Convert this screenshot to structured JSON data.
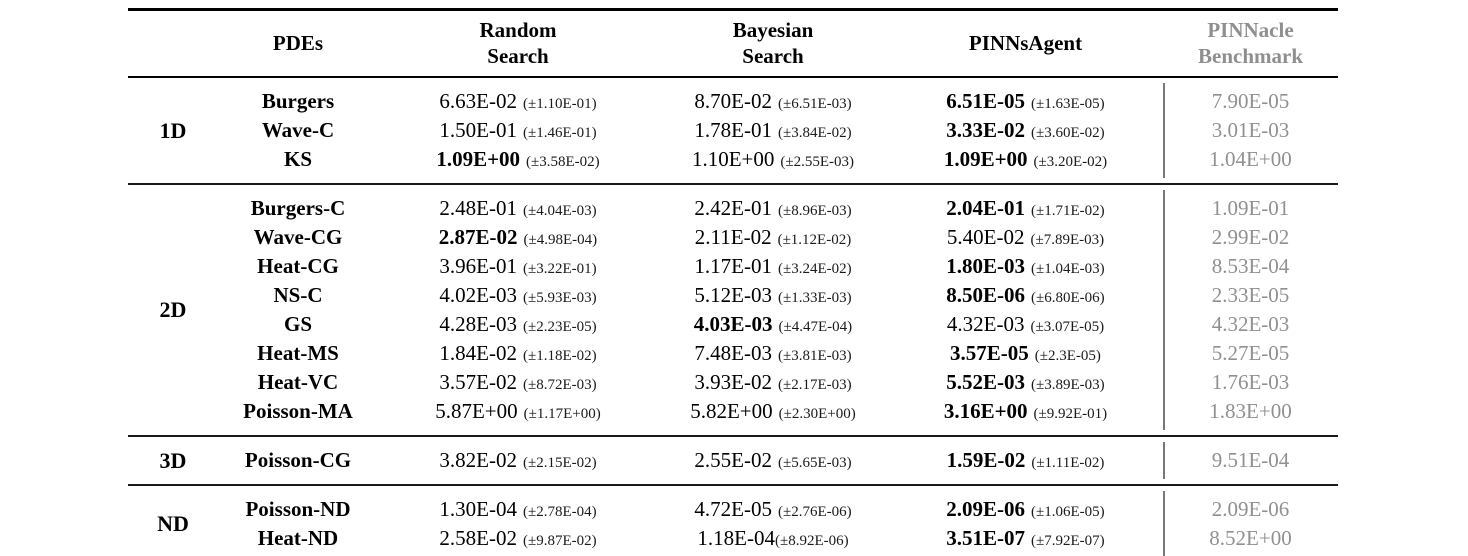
{
  "table": {
    "columns": {
      "pdes": {
        "label": "PDEs"
      },
      "random_search": {
        "line1": "Random",
        "line2": "Search"
      },
      "bayesian_search": {
        "line1": "Bayesian",
        "line2": "Search"
      },
      "pinnsagent": {
        "label": "PINNsAgent"
      },
      "pinnacle_benchmark": {
        "line1": "PINNacle",
        "line2": "Benchmark"
      }
    },
    "colors": {
      "text": "#000000",
      "benchmark_gray": "#909090",
      "rule_black": "#000000",
      "vline_gray": "#787878"
    },
    "groups": [
      {
        "dim": "1D",
        "rows": [
          {
            "pde": "Burgers",
            "random": {
              "value": "6.63E-02",
              "std": "(±1.10E-01)",
              "bold": false
            },
            "bayesian": {
              "value": "8.70E-02",
              "std": "(±6.51E-03)",
              "bold": false
            },
            "pinnsagent": {
              "value": "6.51E-05",
              "std": "(±1.63E-05)",
              "bold": true
            },
            "benchmark": "7.90E-05"
          },
          {
            "pde": "Wave-C",
            "random": {
              "value": "1.50E-01",
              "std": "(±1.46E-01)",
              "bold": false
            },
            "bayesian": {
              "value": "1.78E-01",
              "std": "(±3.84E-02)",
              "bold": false
            },
            "pinnsagent": {
              "value": "3.33E-02",
              "std": "(±3.60E-02)",
              "bold": true
            },
            "benchmark": "3.01E-03"
          },
          {
            "pde": "KS",
            "random": {
              "value": "1.09E+00",
              "std": "(±3.58E-02)",
              "bold": true
            },
            "bayesian": {
              "value": "1.10E+00",
              "std": "(±2.55E-03)",
              "bold": false
            },
            "pinnsagent": {
              "value": "1.09E+00",
              "std": "(±3.20E-02)",
              "bold": true
            },
            "benchmark": "1.04E+00"
          }
        ]
      },
      {
        "dim": "2D",
        "rows": [
          {
            "pde": "Burgers-C",
            "random": {
              "value": "2.48E-01",
              "std": "(±4.04E-03)",
              "bold": false
            },
            "bayesian": {
              "value": "2.42E-01",
              "std": "(±8.96E-03)",
              "bold": false
            },
            "pinnsagent": {
              "value": "2.04E-01",
              "std": "(±1.71E-02)",
              "bold": true
            },
            "benchmark": "1.09E-01"
          },
          {
            "pde": "Wave-CG",
            "random": {
              "value": "2.87E-02",
              "std": "(±4.98E-04)",
              "bold": true
            },
            "bayesian": {
              "value": "2.11E-02",
              "std": "(±1.12E-02)",
              "bold": false
            },
            "pinnsagent": {
              "value": "5.40E-02",
              "std": "(±7.89E-03)",
              "bold": false
            },
            "benchmark": "2.99E-02"
          },
          {
            "pde": "Heat-CG",
            "random": {
              "value": "3.96E-01",
              "std": "(±3.22E-01)",
              "bold": false
            },
            "bayesian": {
              "value": "1.17E-01",
              "std": "(±3.24E-02)",
              "bold": false
            },
            "pinnsagent": {
              "value": "1.80E-03",
              "std": "(±1.04E-03)",
              "bold": true
            },
            "benchmark": "8.53E-04"
          },
          {
            "pde": "NS-C",
            "random": {
              "value": "4.02E-03",
              "std": "(±5.93E-03)",
              "bold": false
            },
            "bayesian": {
              "value": "5.12E-03",
              "std": "(±1.33E-03)",
              "bold": false
            },
            "pinnsagent": {
              "value": "8.50E-06",
              "std": "(±6.80E-06)",
              "bold": true
            },
            "benchmark": "2.33E-05"
          },
          {
            "pde": "GS",
            "random": {
              "value": "4.28E-03",
              "std": "(±2.23E-05)",
              "bold": false
            },
            "bayesian": {
              "value": "4.03E-03",
              "std": "(±4.47E-04)",
              "bold": true
            },
            "pinnsagent": {
              "value": "4.32E-03",
              "std": "(±3.07E-05)",
              "bold": false
            },
            "benchmark": "4.32E-03"
          },
          {
            "pde": "Heat-MS",
            "random": {
              "value": "1.84E-02",
              "std": "(±1.18E-02)",
              "bold": false
            },
            "bayesian": {
              "value": "7.48E-03",
              "std": "(±3.81E-03)",
              "bold": false
            },
            "pinnsagent": {
              "value": "3.57E-05",
              "std": "(±2.3E-05)",
              "bold": true
            },
            "benchmark": "5.27E-05"
          },
          {
            "pde": "Heat-VC",
            "random": {
              "value": "3.57E-02",
              "std": "(±8.72E-03)",
              "bold": false
            },
            "bayesian": {
              "value": "3.93E-02",
              "std": "(±2.17E-03)",
              "bold": false
            },
            "pinnsagent": {
              "value": "5.52E-03",
              "std": "(±3.89E-03)",
              "bold": true
            },
            "benchmark": "1.76E-03"
          },
          {
            "pde": "Poisson-MA",
            "random": {
              "value": "5.87E+00",
              "std": "(±1.17E+00)",
              "bold": false
            },
            "bayesian": {
              "value": "5.82E+00",
              "std": "(±2.30E+00)",
              "bold": false
            },
            "pinnsagent": {
              "value": "3.16E+00",
              "std": "(±9.92E-01)",
              "bold": true
            },
            "benchmark": "1.83E+00"
          }
        ]
      },
      {
        "dim": "3D",
        "rows": [
          {
            "pde": "Poisson-CG",
            "random": {
              "value": "3.82E-02",
              "std": "(±2.15E-02)",
              "bold": false
            },
            "bayesian": {
              "value": "2.55E-02",
              "std": "(±5.65E-03)",
              "bold": false
            },
            "pinnsagent": {
              "value": "1.59E-02",
              "std": "(±1.11E-02)",
              "bold": true
            },
            "benchmark": "9.51E-04"
          }
        ]
      },
      {
        "dim": "ND",
        "rows": [
          {
            "pde": "Poisson-ND",
            "random": {
              "value": "1.30E-04",
              "std": "(±2.78E-04)",
              "bold": false
            },
            "bayesian": {
              "value": "4.72E-05",
              "std": "(±2.76E-06)",
              "bold": false
            },
            "pinnsagent": {
              "value": "2.09E-06",
              "std": "(±1.06E-05)",
              "bold": true
            },
            "benchmark": "2.09E-06"
          },
          {
            "pde": "Heat-ND",
            "random": {
              "value": "2.58E-02",
              "std": "(±9.87E-02)",
              "bold": false
            },
            "bayesian": {
              "value": "1.18E-04",
              "std": "(±8.92E-06)",
              "bold": false,
              "tight": true
            },
            "pinnsagent": {
              "value": "3.51E-07",
              "std": "(±7.92E-07)",
              "bold": true
            },
            "benchmark": "8.52E+00"
          }
        ]
      }
    ]
  }
}
